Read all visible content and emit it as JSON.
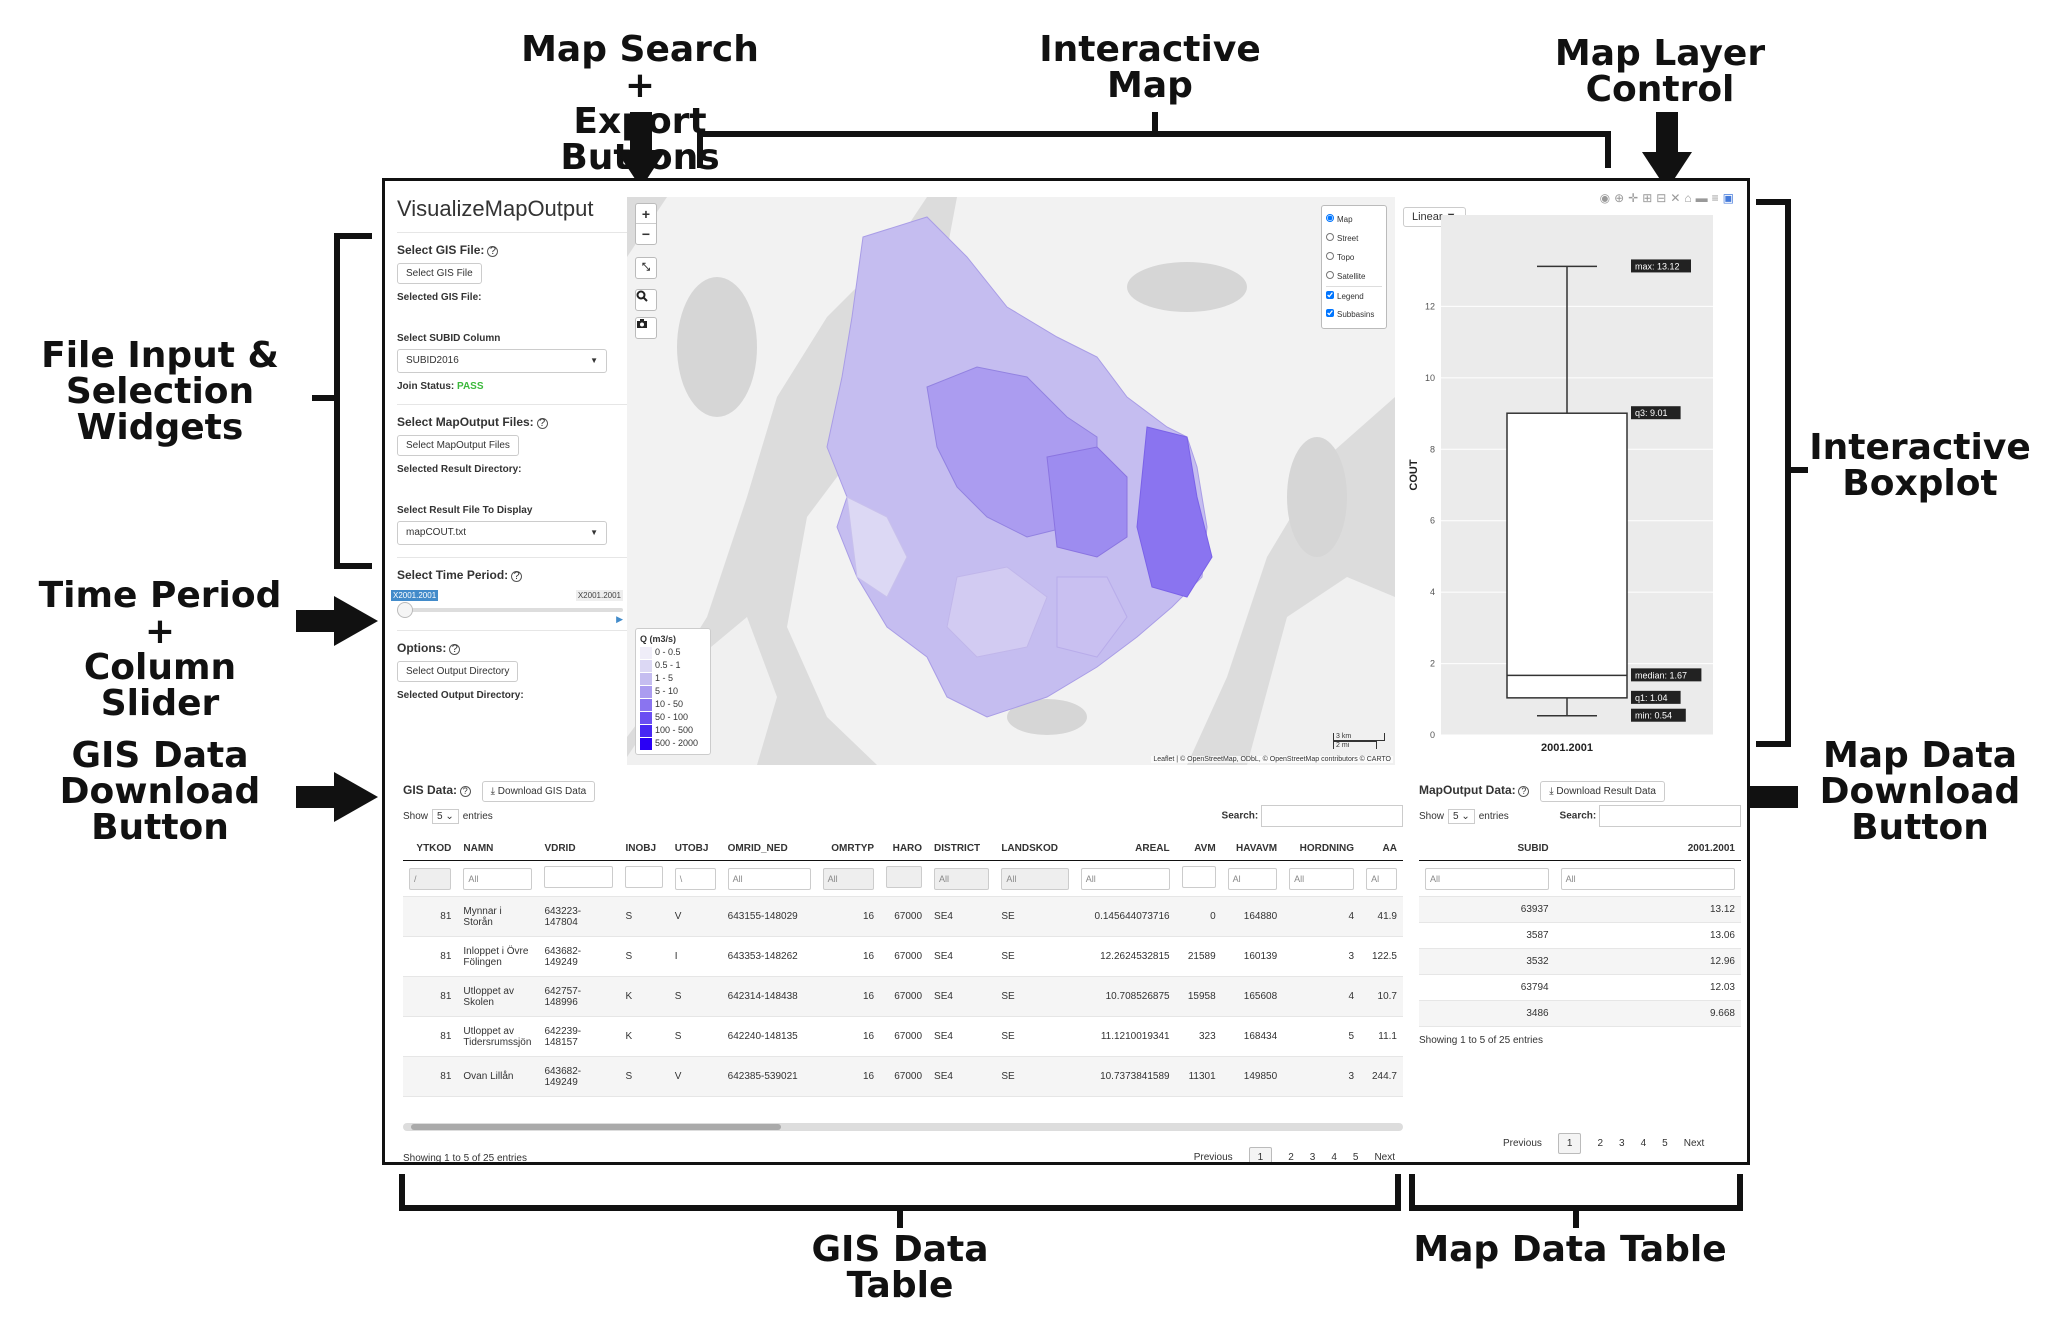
{
  "annotations": {
    "map_search_export": "Map Search +\nExport Buttons",
    "interactive_map": "Interactive\nMap",
    "map_layer_control": "Map Layer\nControl",
    "file_input_widgets": "File Input &\nSelection\nWidgets",
    "time_period_slider": "Time Period +\nColumn Slider",
    "gis_download_button": "GIS Data\nDownload\nButton",
    "interactive_boxplot": "Interactive\nBoxplot",
    "map_data_download_button": "Map Data\nDownload\nButton",
    "gis_data_table": "GIS Data\nTable",
    "map_data_table": "Map Data Table"
  },
  "app": {
    "title": "VisualizeMapOutput",
    "gis_file_label": "Select GIS File:",
    "gis_file_button": "Select GIS File",
    "selected_gis_file": "Selected GIS File:",
    "subid_label": "Select SUBID Column",
    "subid_value": "SUBID2016",
    "join_status_label": "Join Status:",
    "join_status_value": "PASS",
    "mapoutput_label": "Select MapOutput Files:",
    "mapoutput_button": "Select MapOutput Files",
    "result_dir_label": "Selected Result Directory:",
    "result_file_label": "Select Result File To Display",
    "result_file_value": "mapCOUT.txt",
    "time_period_label": "Select Time Period:",
    "slider_left": "X2001.2001",
    "slider_right": "X2001.2001",
    "options_label": "Options:",
    "output_dir_button": "Select Output Directory",
    "output_dir_label": "Selected Output Directory:"
  },
  "map": {
    "zoom_in": "+",
    "zoom_out": "−",
    "fullscreen": "⤡",
    "layers": [
      {
        "label": "Map",
        "type": "radio",
        "checked": true
      },
      {
        "label": "Street",
        "type": "radio",
        "checked": false
      },
      {
        "label": "Topo",
        "type": "radio",
        "checked": false
      },
      {
        "label": "Satellite",
        "type": "radio",
        "checked": false
      },
      {
        "label": "Legend",
        "type": "checkbox",
        "checked": true
      },
      {
        "label": "Subbasins",
        "type": "checkbox",
        "checked": true
      }
    ],
    "legend_title": "Q (m3/s)",
    "legend": [
      {
        "label": "0 - 0.5",
        "color": "#efedf8"
      },
      {
        "label": "0.5 - 1",
        "color": "#dcd8f4"
      },
      {
        "label": "1 - 5",
        "color": "#c5bdf0"
      },
      {
        "label": "5 - 10",
        "color": "#ab9cf0"
      },
      {
        "label": "10 - 50",
        "color": "#8a74f0"
      },
      {
        "label": "50 - 100",
        "color": "#6a4ef2"
      },
      {
        "label": "100 - 500",
        "color": "#4727f3"
      },
      {
        "label": "500 - 2000",
        "color": "#2a00f5"
      }
    ],
    "scale_km": "3 km",
    "scale_mi": "2 mi",
    "attribution": "Leaflet | © OpenStreetMap, ODbL, © OpenStreetMap contributors © CARTO"
  },
  "boxplot": {
    "scale_button": "Linear",
    "ylabel": "COUT",
    "xlabel": "2001.2001",
    "ticks": [
      0,
      2,
      4,
      6,
      8,
      10,
      12
    ],
    "ylim": [
      0,
      14
    ],
    "stats": {
      "min": 0.54,
      "q1": 1.04,
      "median": 1.67,
      "q3": 9.01,
      "max": 13.12
    },
    "labels": {
      "max": "max: 13.12",
      "q3": "q3: 9.01",
      "median": "median: 1.67",
      "q1": "q1: 1.04",
      "min": "min: 0.54"
    }
  },
  "gis_table": {
    "title": "GIS Data:",
    "download_button": "Download GIS Data",
    "show": "Show",
    "show_value": "5",
    "entries": "entries",
    "search": "Search:",
    "columns": [
      "YTKOD",
      "NAMN",
      "VDRID",
      "INOBJ",
      "UTOBJ",
      "OMRID_NED",
      "OMRTYP",
      "HARO",
      "DISTRICT",
      "LANDSKOD",
      "AREAL",
      "AVM",
      "HAVAVM",
      "HORDNING",
      "AA"
    ],
    "filters": [
      "/",
      "All",
      "",
      "",
      "\\",
      "All",
      "All",
      "",
      "All",
      "All",
      "All",
      "",
      "Al",
      "All",
      "Al"
    ],
    "rows": [
      [
        "81",
        "Mynnar i Storån",
        "643223-147804",
        "S",
        "V",
        "643155-148029",
        "16",
        "67000",
        "SE4",
        "SE",
        "0.145644073716",
        "0",
        "164880",
        "4",
        "41.9"
      ],
      [
        "81",
        "Inloppet i Övre Fölingen",
        "643682-149249",
        "S",
        "I",
        "643353-148262",
        "16",
        "67000",
        "SE4",
        "SE",
        "12.2624532815",
        "21589",
        "160139",
        "3",
        "122.5"
      ],
      [
        "81",
        "Utloppet av Skolen",
        "642757-148996",
        "K",
        "S",
        "642314-148438",
        "16",
        "67000",
        "SE4",
        "SE",
        "10.708526875",
        "15958",
        "165608",
        "4",
        "10.7"
      ],
      [
        "81",
        "Utloppet av Tidersrumssjön",
        "642239-148157",
        "K",
        "S",
        "642240-148135",
        "16",
        "67000",
        "SE4",
        "SE",
        "11.1210019341",
        "323",
        "168434",
        "5",
        "11.1"
      ],
      [
        "81",
        "Ovan Lillån",
        "643682-149249",
        "S",
        "V",
        "642385-539021",
        "16",
        "67000",
        "SE4",
        "SE",
        "10.7373841589",
        "11301",
        "149850",
        "3",
        "244.7"
      ]
    ],
    "info": "Showing 1 to 5 of 25 entries",
    "pages": [
      "Previous",
      "1",
      "2",
      "3",
      "4",
      "5",
      "Next"
    ]
  },
  "map_table": {
    "title": "MapOutput Data:",
    "download_button": "Download Result Data",
    "show": "Show",
    "show_value": "5",
    "entries": "entries",
    "search": "Search:",
    "columns": [
      "SUBID",
      "2001.2001"
    ],
    "filters": [
      "All",
      "All"
    ],
    "rows": [
      [
        "63937",
        "13.12"
      ],
      [
        "3587",
        "13.06"
      ],
      [
        "3532",
        "12.96"
      ],
      [
        "63794",
        "12.03"
      ],
      [
        "3486",
        "9.668"
      ]
    ],
    "info": "Showing 1 to 5 of 25 entries",
    "pages": [
      "Previous",
      "1",
      "2",
      "3",
      "4",
      "5",
      "Next"
    ]
  }
}
